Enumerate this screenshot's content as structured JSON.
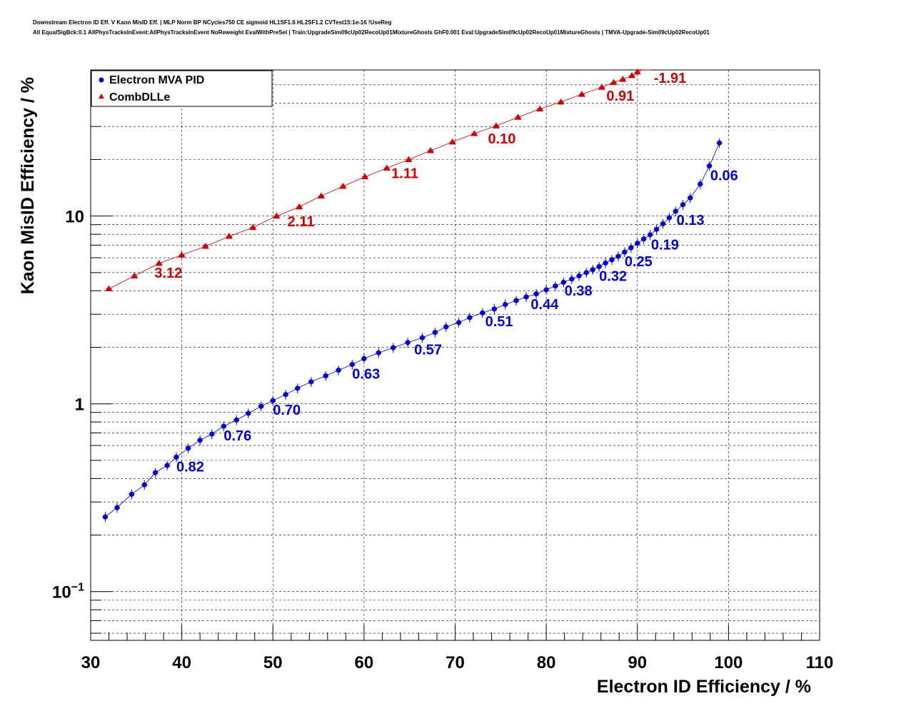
{
  "header": {
    "title_line1": "Downstream Electron ID Eff. V Kaon MisID Eff. | MLP Norm BP NCycles750 CE sigmoid HL1SF1.6 HL2SF1.2 CVTest15:1e-16 !UseReg",
    "title_line2": "All EqualSigBck:0.1 AllPhysTracksInEvent:AllPhysTracksInEvent NoReweight EvalWithPreSel | Train:UpgradeSim09cUp02RecoUp01MixtureGhosts GhF0.001 Eval:UpgradeSim09cUp02RecoUp01MixtureGhosts | TMVA-Upgrade-Sim09cUp02RecoUp01"
  },
  "chart_data": {
    "type": "scatter",
    "xlabel": "Electron ID Efficiency / %",
    "ylabel": "Kaon MisID Efficiency / %",
    "xlim": [
      30,
      110
    ],
    "ylim": [
      0.055,
      60
    ],
    "yscale": "log",
    "x_ticks": [
      30,
      40,
      50,
      60,
      70,
      80,
      90,
      100,
      110
    ],
    "x_tick_labels": [
      "30",
      "40",
      "50",
      "60",
      "70",
      "80",
      "90",
      "100",
      "110"
    ],
    "y_tick_labels": [
      {
        "value": 0.1,
        "base": "10",
        "exp": "−1"
      },
      {
        "value": 1,
        "base": "1",
        "exp": ""
      },
      {
        "value": 10,
        "base": "10",
        "exp": ""
      }
    ],
    "grid": true,
    "legend_position": "top-left",
    "series": [
      {
        "name": "Electron MVA PID",
        "color": "#0000cc",
        "marker": "circle",
        "x": [
          31.6,
          32.9,
          34.5,
          35.9,
          37.1,
          38.4,
          39.4,
          40.7,
          42.0,
          43.3,
          44.6,
          46.0,
          47.3,
          48.7,
          50.0,
          51.4,
          52.7,
          54.2,
          55.8,
          57.2,
          58.7,
          60.0,
          61.6,
          63.2,
          64.8,
          66.4,
          67.8,
          69.0,
          70.4,
          71.6,
          73.0,
          74.3,
          75.5,
          76.7,
          77.8,
          78.9,
          80.0,
          81.0,
          81.9,
          82.8,
          83.6,
          84.4,
          85.1,
          85.8,
          86.5,
          87.2,
          87.9,
          88.6,
          89.3,
          90.0,
          90.7,
          91.4,
          92.1,
          92.8,
          93.5,
          94.2,
          95.0,
          95.8,
          96.9,
          97.9,
          99.0
        ],
        "y": [
          0.25,
          0.28,
          0.33,
          0.37,
          0.43,
          0.47,
          0.52,
          0.58,
          0.64,
          0.69,
          0.76,
          0.82,
          0.89,
          0.97,
          1.04,
          1.12,
          1.21,
          1.31,
          1.41,
          1.51,
          1.62,
          1.74,
          1.87,
          1.99,
          2.12,
          2.25,
          2.4,
          2.57,
          2.71,
          2.88,
          3.05,
          3.2,
          3.38,
          3.55,
          3.71,
          3.85,
          4.05,
          4.24,
          4.44,
          4.62,
          4.8,
          5.0,
          5.18,
          5.38,
          5.62,
          5.85,
          6.1,
          6.43,
          6.78,
          7.16,
          7.55,
          7.95,
          8.5,
          9.1,
          9.8,
          10.6,
          11.5,
          12.5,
          14.8,
          18.5,
          24.5
        ],
        "yerr_rel": 0.06,
        "cut_labels": [
          {
            "text": "0.82",
            "x": 39.4,
            "y": 0.52
          },
          {
            "text": "0.76",
            "x": 44.6,
            "y": 0.76
          },
          {
            "text": "0.70",
            "x": 50.0,
            "y": 1.04
          },
          {
            "text": "0.63",
            "x": 58.7,
            "y": 1.62
          },
          {
            "text": "0.57",
            "x": 65.5,
            "y": 2.18
          },
          {
            "text": "0.51",
            "x": 73.3,
            "y": 3.08
          },
          {
            "text": "0.44",
            "x": 78.3,
            "y": 3.8
          },
          {
            "text": "0.38",
            "x": 82.0,
            "y": 4.5
          },
          {
            "text": "0.32",
            "x": 85.8,
            "y": 5.38
          },
          {
            "text": "0.25",
            "x": 88.6,
            "y": 6.43
          },
          {
            "text": "0.19",
            "x": 91.5,
            "y": 7.9
          },
          {
            "text": "0.13",
            "x": 94.3,
            "y": 10.7
          },
          {
            "text": "0.06",
            "x": 98.0,
            "y": 18.5
          }
        ]
      },
      {
        "name": "CombDLLe",
        "color": "#cc0000",
        "marker": "triangle",
        "x": [
          32.0,
          34.8,
          37.5,
          40.0,
          42.6,
          45.2,
          47.8,
          50.4,
          52.9,
          55.3,
          57.7,
          60.1,
          62.5,
          64.9,
          67.3,
          69.7,
          72.1,
          74.5,
          76.9,
          79.3,
          81.6,
          83.9,
          86.1,
          87.4,
          88.4,
          89.4,
          90.0,
          90.5,
          91.0,
          91.4
        ],
        "y": [
          4.1,
          4.8,
          5.6,
          6.2,
          6.9,
          7.8,
          8.7,
          10.0,
          11.2,
          12.8,
          14.4,
          16.2,
          18.0,
          20.0,
          22.3,
          24.8,
          27.5,
          30.2,
          33.6,
          37.2,
          40.5,
          44.5,
          48.5,
          51.5,
          53.5,
          56.0,
          58.5,
          61.5,
          65.0,
          68.0
        ],
        "cut_labels": [
          {
            "text": "3.12",
            "x": 37.0,
            "y": 5.6
          },
          {
            "text": "2.11",
            "x": 51.6,
            "y": 10.5
          },
          {
            "text": "1.11",
            "x": 63.0,
            "y": 19.0
          },
          {
            "text": "0.10",
            "x": 73.6,
            "y": 29.0
          },
          {
            "text": "0.91",
            "x": 86.6,
            "y": 49.0
          },
          {
            "text": "-1.91",
            "x": 91.8,
            "y": 66.0
          }
        ]
      }
    ]
  },
  "legend": {
    "entries": [
      {
        "label": "Electron MVA PID"
      },
      {
        "label": "CombDLLe"
      }
    ]
  }
}
